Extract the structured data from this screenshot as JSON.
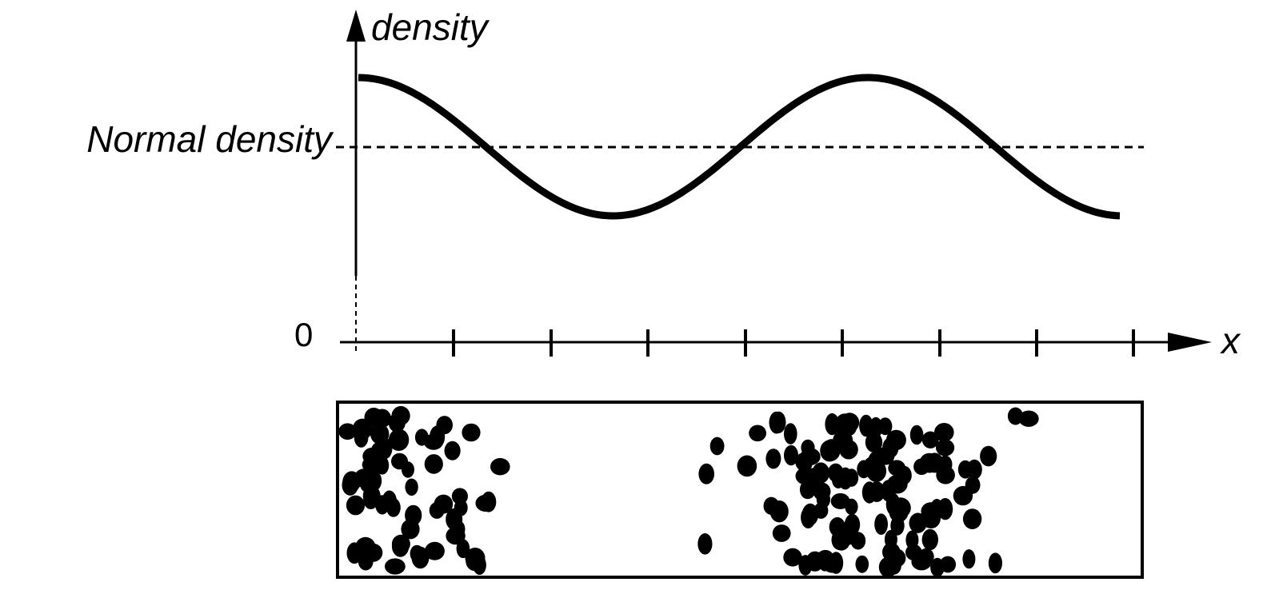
{
  "diagram": {
    "y_axis_label": "density",
    "reference_label": "Normal density",
    "origin_label": "0",
    "x_axis_label": "x"
  }
}
